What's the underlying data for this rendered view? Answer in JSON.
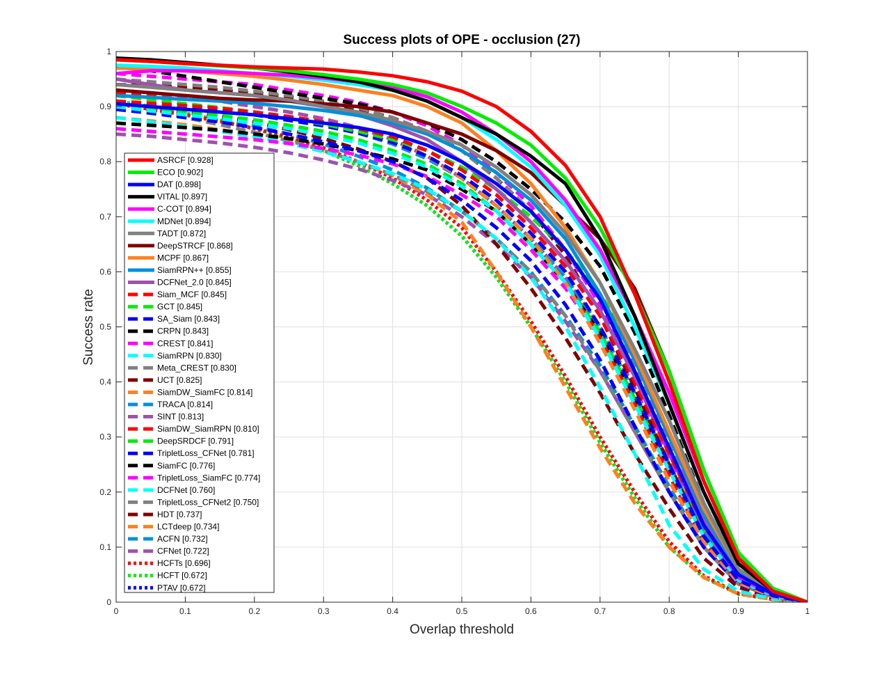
{
  "chart_data": {
    "type": "line",
    "title": "Success plots of OPE - occlusion (27)",
    "xlabel": "Overlap threshold",
    "ylabel": "Success rate",
    "xlim": [
      0,
      1
    ],
    "ylim": [
      0,
      1
    ],
    "grid": true,
    "legend_position": "left, lower-middle inside axes",
    "x": [
      0,
      0.05,
      0.1,
      0.15,
      0.2,
      0.25,
      0.3,
      0.35,
      0.4,
      0.45,
      0.5,
      0.55,
      0.6,
      0.65,
      0.7,
      0.75,
      0.8,
      0.85,
      0.9,
      0.95,
      1.0
    ],
    "xticks": [
      "0",
      "0.1",
      "0.2",
      "0.3",
      "0.4",
      "0.5",
      "0.6",
      "0.7",
      "0.8",
      "0.9",
      "1"
    ],
    "yticks": [
      "0",
      "0.1",
      "0.2",
      "0.3",
      "0.4",
      "0.5",
      "0.6",
      "0.7",
      "0.8",
      "0.9",
      "1"
    ],
    "series": [
      {
        "name": "ASRCF [0.928]",
        "color": "#ff0000",
        "style": "solid",
        "values": [
          0.985,
          0.982,
          0.978,
          0.975,
          0.972,
          0.97,
          0.968,
          0.963,
          0.956,
          0.945,
          0.928,
          0.9,
          0.855,
          0.793,
          0.7,
          0.56,
          0.4,
          0.22,
          0.08,
          0.02,
          0
        ]
      },
      {
        "name": "ECO [0.902]",
        "color": "#00ee00",
        "style": "solid",
        "values": [
          0.985,
          0.982,
          0.978,
          0.974,
          0.97,
          0.965,
          0.958,
          0.95,
          0.94,
          0.925,
          0.9,
          0.87,
          0.83,
          0.77,
          0.68,
          0.56,
          0.42,
          0.24,
          0.09,
          0.025,
          0
        ]
      },
      {
        "name": "DAT [0.898]",
        "color": "#0000ff",
        "style": "solid",
        "values": [
          0.905,
          0.9,
          0.895,
          0.89,
          0.885,
          0.878,
          0.87,
          0.862,
          0.85,
          0.83,
          0.8,
          0.76,
          0.71,
          0.64,
          0.55,
          0.42,
          0.28,
          0.14,
          0.05,
          0.015,
          0
        ]
      },
      {
        "name": "VITAL [0.897]",
        "color": "#000000",
        "style": "solid",
        "values": [
          0.988,
          0.985,
          0.98,
          0.975,
          0.97,
          0.963,
          0.955,
          0.945,
          0.93,
          0.91,
          0.88,
          0.85,
          0.81,
          0.76,
          0.66,
          0.52,
          0.36,
          0.2,
          0.07,
          0.02,
          0
        ]
      },
      {
        "name": "C-COT [0.894]",
        "color": "#ff00ff",
        "style": "solid",
        "values": [
          0.96,
          0.965,
          0.965,
          0.963,
          0.96,
          0.957,
          0.952,
          0.945,
          0.935,
          0.918,
          0.89,
          0.85,
          0.8,
          0.73,
          0.64,
          0.52,
          0.38,
          0.22,
          0.08,
          0.02,
          0
        ]
      },
      {
        "name": "MDNet [0.894]",
        "color": "#00ffff",
        "style": "solid",
        "values": [
          0.975,
          0.973,
          0.97,
          0.965,
          0.96,
          0.955,
          0.948,
          0.94,
          0.93,
          0.91,
          0.88,
          0.84,
          0.79,
          0.72,
          0.63,
          0.5,
          0.36,
          0.2,
          0.07,
          0.02,
          0
        ]
      },
      {
        "name": "TADT [0.872]",
        "color": "#808080",
        "style": "solid",
        "values": [
          0.94,
          0.935,
          0.93,
          0.925,
          0.92,
          0.912,
          0.9,
          0.89,
          0.875,
          0.855,
          0.83,
          0.79,
          0.74,
          0.67,
          0.58,
          0.46,
          0.33,
          0.18,
          0.06,
          0.018,
          0
        ]
      },
      {
        "name": "DeepSTRCF [0.868]",
        "color": "#800000",
        "style": "solid",
        "values": [
          0.93,
          0.925,
          0.92,
          0.915,
          0.912,
          0.91,
          0.905,
          0.9,
          0.89,
          0.87,
          0.85,
          0.82,
          0.78,
          0.72,
          0.66,
          0.57,
          0.42,
          0.24,
          0.09,
          0.025,
          0
        ]
      },
      {
        "name": "MCPF [0.867]",
        "color": "#ff8020",
        "style": "solid",
        "values": [
          0.97,
          0.968,
          0.965,
          0.96,
          0.955,
          0.948,
          0.94,
          0.93,
          0.92,
          0.9,
          0.87,
          0.82,
          0.76,
          0.68,
          0.58,
          0.45,
          0.31,
          0.17,
          0.06,
          0.018,
          0
        ]
      },
      {
        "name": "SiamRPN++ [0.855]",
        "color": "#0090d8",
        "style": "solid",
        "values": [
          0.92,
          0.917,
          0.913,
          0.91,
          0.906,
          0.9,
          0.893,
          0.884,
          0.87,
          0.85,
          0.82,
          0.78,
          0.73,
          0.66,
          0.56,
          0.44,
          0.3,
          0.16,
          0.055,
          0.016,
          0
        ]
      },
      {
        "name": "DCFNet_2.0 [0.845]",
        "color": "#a050b0",
        "style": "solid",
        "values": [
          0.95,
          0.94,
          0.93,
          0.925,
          0.92,
          0.91,
          0.9,
          0.885,
          0.865,
          0.84,
          0.8,
          0.75,
          0.69,
          0.62,
          0.53,
          0.41,
          0.28,
          0.15,
          0.05,
          0.015,
          0
        ]
      },
      {
        "name": "Siam_MCF [0.845]",
        "color": "#ff0000",
        "style": "dashed",
        "values": [
          0.91,
          0.906,
          0.902,
          0.897,
          0.89,
          0.882,
          0.872,
          0.86,
          0.845,
          0.82,
          0.785,
          0.74,
          0.68,
          0.61,
          0.52,
          0.4,
          0.27,
          0.14,
          0.05,
          0.015,
          0
        ]
      },
      {
        "name": "GCT [0.845]",
        "color": "#00ee00",
        "style": "dashed",
        "values": [
          0.92,
          0.913,
          0.905,
          0.898,
          0.89,
          0.88,
          0.868,
          0.855,
          0.84,
          0.82,
          0.79,
          0.75,
          0.7,
          0.64,
          0.56,
          0.46,
          0.33,
          0.18,
          0.065,
          0.02,
          0
        ]
      },
      {
        "name": "SA_Siam [0.843]",
        "color": "#0000ff",
        "style": "dashed",
        "values": [
          0.91,
          0.905,
          0.9,
          0.895,
          0.885,
          0.875,
          0.865,
          0.852,
          0.835,
          0.81,
          0.775,
          0.73,
          0.67,
          0.6,
          0.5,
          0.38,
          0.25,
          0.12,
          0.04,
          0.012,
          0
        ]
      },
      {
        "name": "CRPN [0.843]",
        "color": "#000000",
        "style": "dashed",
        "values": [
          0.975,
          0.965,
          0.955,
          0.945,
          0.935,
          0.925,
          0.915,
          0.905,
          0.89,
          0.87,
          0.84,
          0.8,
          0.75,
          0.69,
          0.61,
          0.49,
          0.34,
          0.18,
          0.06,
          0.018,
          0
        ]
      },
      {
        "name": "CREST [0.841]",
        "color": "#ff00ff",
        "style": "dashed",
        "values": [
          0.96,
          0.955,
          0.95,
          0.945,
          0.94,
          0.93,
          0.92,
          0.908,
          0.89,
          0.865,
          0.83,
          0.78,
          0.72,
          0.64,
          0.54,
          0.41,
          0.27,
          0.14,
          0.045,
          0.014,
          0
        ]
      },
      {
        "name": "SiamRPN [0.830]",
        "color": "#00ffff",
        "style": "dashed",
        "values": [
          0.9,
          0.892,
          0.885,
          0.878,
          0.87,
          0.86,
          0.848,
          0.834,
          0.815,
          0.79,
          0.755,
          0.71,
          0.65,
          0.58,
          0.48,
          0.36,
          0.24,
          0.12,
          0.04,
          0.012,
          0
        ]
      },
      {
        "name": "Meta_CREST [0.830]",
        "color": "#808080",
        "style": "dashed",
        "values": [
          0.95,
          0.945,
          0.94,
          0.935,
          0.928,
          0.92,
          0.91,
          0.898,
          0.88,
          0.855,
          0.82,
          0.77,
          0.71,
          0.64,
          0.55,
          0.43,
          0.29,
          0.15,
          0.05,
          0.015,
          0
        ]
      },
      {
        "name": "UCT [0.825]",
        "color": "#800000",
        "style": "dashed",
        "values": [
          0.94,
          0.938,
          0.935,
          0.93,
          0.925,
          0.918,
          0.908,
          0.895,
          0.88,
          0.855,
          0.82,
          0.77,
          0.71,
          0.63,
          0.52,
          0.39,
          0.25,
          0.12,
          0.04,
          0.012,
          0
        ]
      },
      {
        "name": "SiamDW_SiamFC [0.814]",
        "color": "#ff8020",
        "style": "dashed",
        "values": [
          0.92,
          0.912,
          0.905,
          0.898,
          0.89,
          0.88,
          0.868,
          0.854,
          0.835,
          0.81,
          0.77,
          0.72,
          0.66,
          0.58,
          0.47,
          0.35,
          0.22,
          0.11,
          0.035,
          0.01,
          0
        ]
      },
      {
        "name": "TRACA [0.814]",
        "color": "#0090d8",
        "style": "dashed",
        "values": [
          0.91,
          0.905,
          0.9,
          0.895,
          0.888,
          0.88,
          0.868,
          0.852,
          0.832,
          0.805,
          0.77,
          0.72,
          0.66,
          0.59,
          0.5,
          0.38,
          0.25,
          0.13,
          0.045,
          0.013,
          0
        ]
      },
      {
        "name": "SINT [0.813]",
        "color": "#a050b0",
        "style": "dashed",
        "values": [
          0.93,
          0.925,
          0.918,
          0.91,
          0.9,
          0.89,
          0.878,
          0.862,
          0.84,
          0.81,
          0.77,
          0.72,
          0.66,
          0.59,
          0.5,
          0.39,
          0.26,
          0.13,
          0.045,
          0.013,
          0
        ]
      },
      {
        "name": "SiamDW_SiamRPN [0.810]",
        "color": "#ff0000",
        "style": "dashed",
        "values": [
          0.925,
          0.92,
          0.915,
          0.91,
          0.9,
          0.89,
          0.878,
          0.862,
          0.84,
          0.81,
          0.77,
          0.72,
          0.66,
          0.58,
          0.48,
          0.36,
          0.23,
          0.11,
          0.036,
          0.011,
          0
        ]
      },
      {
        "name": "DeepSRDCF [0.791]",
        "color": "#00ee00",
        "style": "dashed",
        "values": [
          0.9,
          0.895,
          0.89,
          0.884,
          0.876,
          0.866,
          0.855,
          0.84,
          0.82,
          0.795,
          0.76,
          0.71,
          0.65,
          0.58,
          0.49,
          0.37,
          0.25,
          0.13,
          0.045,
          0.014,
          0
        ]
      },
      {
        "name": "TripletLoss_CFNet [0.781]",
        "color": "#0000ff",
        "style": "dashed",
        "values": [
          0.895,
          0.888,
          0.88,
          0.872,
          0.862,
          0.85,
          0.836,
          0.82,
          0.8,
          0.77,
          0.73,
          0.68,
          0.62,
          0.54,
          0.44,
          0.32,
          0.2,
          0.1,
          0.033,
          0.01,
          0
        ]
      },
      {
        "name": "SiamFC [0.776]",
        "color": "#000000",
        "style": "dashed",
        "values": [
          0.87,
          0.866,
          0.862,
          0.857,
          0.85,
          0.842,
          0.832,
          0.82,
          0.805,
          0.785,
          0.75,
          0.71,
          0.65,
          0.58,
          0.49,
          0.37,
          0.24,
          0.12,
          0.04,
          0.012,
          0
        ]
      },
      {
        "name": "TripletLoss_SiamFC [0.774]",
        "color": "#ff00ff",
        "style": "dashed",
        "values": [
          0.86,
          0.855,
          0.85,
          0.845,
          0.84,
          0.833,
          0.824,
          0.812,
          0.796,
          0.773,
          0.74,
          0.7,
          0.64,
          0.57,
          0.48,
          0.36,
          0.24,
          0.12,
          0.04,
          0.012,
          0
        ]
      },
      {
        "name": "DCFNet [0.760]",
        "color": "#00ffff",
        "style": "dashed",
        "values": [
          0.88,
          0.872,
          0.864,
          0.855,
          0.845,
          0.833,
          0.818,
          0.8,
          0.778,
          0.75,
          0.71,
          0.66,
          0.59,
          0.5,
          0.39,
          0.27,
          0.14,
          0.06,
          0.02,
          0.006,
          0
        ]
      },
      {
        "name": "TripletLoss_CFNet2 [0.750]",
        "color": "#808080",
        "style": "dashed",
        "values": [
          0.905,
          0.893,
          0.88,
          0.867,
          0.853,
          0.838,
          0.82,
          0.8,
          0.776,
          0.746,
          0.71,
          0.66,
          0.6,
          0.52,
          0.42,
          0.31,
          0.2,
          0.1,
          0.033,
          0.01,
          0
        ]
      },
      {
        "name": "HDT [0.737]",
        "color": "#800000",
        "style": "dashed",
        "values": [
          0.91,
          0.902,
          0.893,
          0.883,
          0.872,
          0.858,
          0.842,
          0.823,
          0.8,
          0.77,
          0.72,
          0.65,
          0.57,
          0.48,
          0.38,
          0.27,
          0.17,
          0.08,
          0.027,
          0.008,
          0
        ]
      },
      {
        "name": "LCTdeep [0.734]",
        "color": "#ff8020",
        "style": "dashed",
        "values": [
          0.88,
          0.874,
          0.867,
          0.858,
          0.848,
          0.836,
          0.82,
          0.8,
          0.775,
          0.74,
          0.69,
          0.6,
          0.5,
          0.39,
          0.28,
          0.18,
          0.1,
          0.045,
          0.015,
          0.005,
          0
        ]
      },
      {
        "name": "ACFN [0.732]",
        "color": "#0090d8",
        "style": "dashed",
        "values": [
          0.91,
          0.9,
          0.89,
          0.878,
          0.865,
          0.85,
          0.832,
          0.81,
          0.785,
          0.752,
          0.71,
          0.66,
          0.6,
          0.52,
          0.43,
          0.32,
          0.21,
          0.1,
          0.035,
          0.01,
          0
        ]
      },
      {
        "name": "CFNet [0.722]",
        "color": "#a050b0",
        "style": "dashed",
        "values": [
          0.85,
          0.846,
          0.84,
          0.834,
          0.826,
          0.816,
          0.803,
          0.787,
          0.766,
          0.74,
          0.7,
          0.65,
          0.59,
          0.51,
          0.42,
          0.31,
          0.2,
          0.1,
          0.033,
          0.01,
          0
        ]
      },
      {
        "name": "HCFTs [0.696]",
        "color": "#ff0000",
        "style": "dotted",
        "values": [
          0.905,
          0.895,
          0.885,
          0.873,
          0.86,
          0.845,
          0.825,
          0.8,
          0.77,
          0.73,
          0.68,
          0.6,
          0.51,
          0.41,
          0.3,
          0.2,
          0.11,
          0.048,
          0.016,
          0.005,
          0
        ]
      },
      {
        "name": "HCFT [0.672]",
        "color": "#00ee00",
        "style": "dotted",
        "values": [
          0.91,
          0.9,
          0.888,
          0.875,
          0.86,
          0.842,
          0.82,
          0.793,
          0.76,
          0.72,
          0.665,
          0.59,
          0.5,
          0.4,
          0.29,
          0.19,
          0.1,
          0.045,
          0.015,
          0.005,
          0
        ]
      },
      {
        "name": "PTAV [0.672]",
        "color": "#0000ff",
        "style": "dotted",
        "values": [
          0.91,
          0.9,
          0.888,
          0.875,
          0.86,
          0.842,
          0.82,
          0.793,
          0.76,
          0.72,
          0.665,
          0.59,
          0.5,
          0.4,
          0.29,
          0.19,
          0.1,
          0.045,
          0.015,
          0.005,
          0
        ]
      }
    ]
  }
}
